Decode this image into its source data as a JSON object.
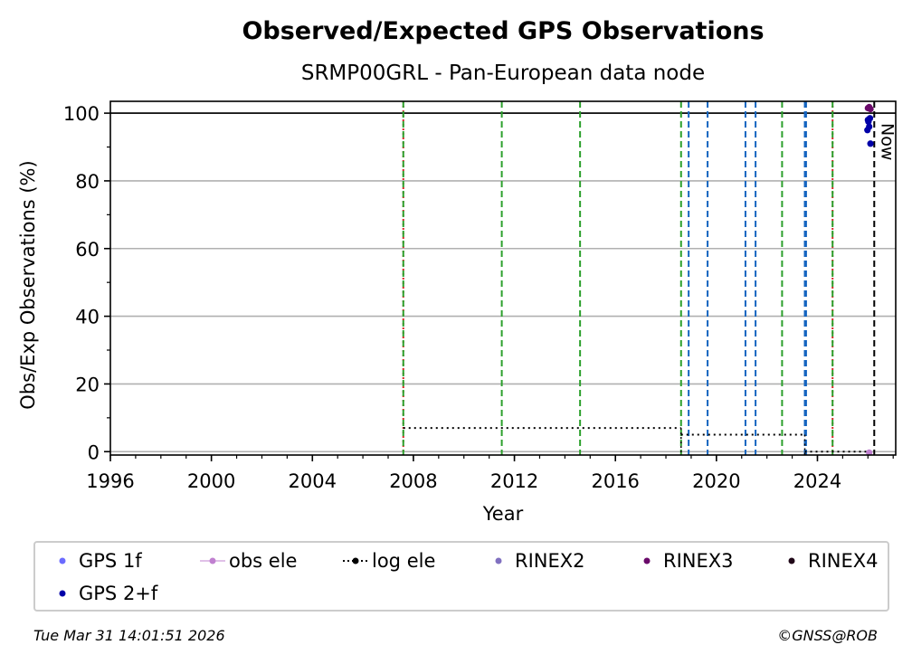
{
  "chart_data": {
    "type": "scatter",
    "title": "Observed/Expected GPS Observations",
    "subtitle": "SRMP00GRL - Pan-European data node",
    "xlabel": "Year",
    "ylabel": "Obs/Exp Observations (%)",
    "xlim": [
      1996,
      2027.1
    ],
    "ylim": [
      -1,
      103.5
    ],
    "x_ticks": [
      1996,
      2000,
      2004,
      2008,
      2012,
      2016,
      2020,
      2024
    ],
    "x_tick_labels": [
      "1996",
      "2000",
      "2004",
      "2008",
      "2012",
      "2016",
      "2020",
      "2024"
    ],
    "y_ticks": [
      0,
      20,
      40,
      60,
      80,
      100
    ],
    "y_tick_labels": [
      "0",
      "20",
      "40",
      "60",
      "80",
      "100"
    ],
    "grid": "horizontal",
    "reference_line_y": 100,
    "now_label": "Now",
    "now_x": 2026.25,
    "vertical_lines": [
      {
        "x": 2007.6,
        "color": "#d62728",
        "style": "dotted"
      },
      {
        "x": 2007.6,
        "color": "#2ca02c",
        "style": "dashed"
      },
      {
        "x": 2011.5,
        "color": "#2ca02c",
        "style": "dashed"
      },
      {
        "x": 2014.6,
        "color": "#2ca02c",
        "style": "dashed"
      },
      {
        "x": 2018.6,
        "color": "#2ca02c",
        "style": "dashed"
      },
      {
        "x": 2018.9,
        "color": "#1565c0",
        "style": "dashed"
      },
      {
        "x": 2019.65,
        "color": "#1565c0",
        "style": "dashed"
      },
      {
        "x": 2021.15,
        "color": "#1565c0",
        "style": "dashed"
      },
      {
        "x": 2021.55,
        "color": "#1565c0",
        "style": "dashed"
      },
      {
        "x": 2022.6,
        "color": "#2ca02c",
        "style": "dashed"
      },
      {
        "x": 2023.5,
        "color": "#1565c0",
        "style": "dashed"
      },
      {
        "x": 2023.55,
        "color": "#1565c0",
        "style": "dashed"
      },
      {
        "x": 2024.6,
        "color": "#d62728",
        "style": "dotted"
      },
      {
        "x": 2024.6,
        "color": "#2ca02c",
        "style": "dashed"
      }
    ],
    "log_ele_segments": [
      {
        "x0": 2007.6,
        "x1": 2018.6,
        "y": 7
      },
      {
        "x0": 2018.6,
        "x1": 2023.5,
        "y": 5
      },
      {
        "x0": 2023.5,
        "x1": 2026.25,
        "y": 0
      }
    ],
    "series": [
      {
        "name": "GPS 1f",
        "color": "#6b6bff",
        "points": []
      },
      {
        "name": "GPS 2+f",
        "color": "#0000a8",
        "points": [
          [
            2026.0,
            98
          ],
          [
            2026.02,
            97.5
          ],
          [
            2026.05,
            96
          ],
          [
            2026.08,
            98.5
          ],
          [
            2026.1,
            91
          ],
          [
            2025.98,
            95
          ]
        ]
      },
      {
        "name": "RINEX3",
        "color": "#6a0a6a",
        "points": [
          [
            2026.0,
            101.5
          ],
          [
            2026.05,
            101.8
          ],
          [
            2026.1,
            101.2
          ]
        ]
      },
      {
        "name": "obs ele",
        "color": "#c080d0",
        "points": [
          [
            2026.05,
            -0.3
          ]
        ]
      }
    ]
  },
  "legend": {
    "items": [
      {
        "label": "GPS 1f",
        "kind": "dot",
        "color": "#6b6bff"
      },
      {
        "label": "obs ele",
        "kind": "line-dot",
        "color": "#c080d0"
      },
      {
        "label": "log ele",
        "kind": "dotted-line",
        "color": "#000000"
      },
      {
        "label": "RINEX2",
        "kind": "dot",
        "color": "#8070c0"
      },
      {
        "label": "RINEX3",
        "kind": "dot",
        "color": "#6a0a6a"
      },
      {
        "label": "RINEX4",
        "kind": "dot",
        "color": "#200818"
      },
      {
        "label": "GPS 2+f",
        "kind": "dot",
        "color": "#0000a8"
      }
    ]
  },
  "footer": {
    "timestamp": "Tue Mar 31 14:01:51 2026",
    "credit": "©GNSS@ROB"
  }
}
